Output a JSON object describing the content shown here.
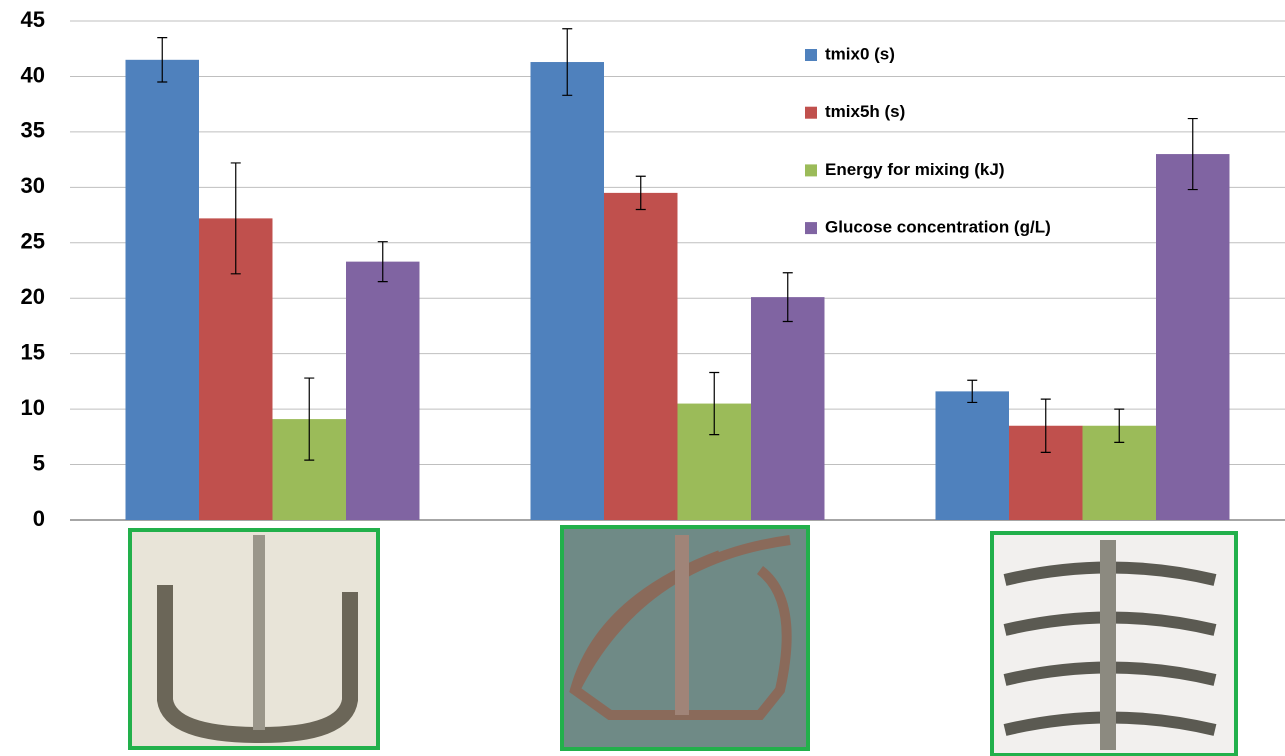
{
  "chart_data": {
    "type": "bar",
    "categories": [
      null,
      null,
      null
    ],
    "series": [
      {
        "name": "tmix0 (s)",
        "color": "#4f81bd",
        "values": [
          41.5,
          41.3,
          11.6
        ],
        "errors": [
          2,
          3,
          1
        ]
      },
      {
        "name": "tmix5h (s)",
        "color": "#c0504d",
        "values": [
          27.2,
          29.5,
          8.5
        ],
        "errors": [
          5,
          1.5,
          2.4
        ]
      },
      {
        "name": "Energy for mixing (kJ)",
        "color": "#9bbb59",
        "values": [
          9.1,
          10.5,
          8.5
        ],
        "errors": [
          3.7,
          2.8,
          1.5
        ]
      },
      {
        "name": "Glucose concentration (g/L)",
        "color": "#8064a2",
        "values": [
          23.3,
          20.1,
          33
        ],
        "errors": [
          1.8,
          2.2,
          3.2
        ]
      }
    ],
    "ylim": [
      0,
      45
    ],
    "yticks": [
      0,
      5,
      10,
      15,
      20,
      25,
      30,
      35,
      40,
      45
    ],
    "grid": true,
    "legend": "top-right"
  }
}
